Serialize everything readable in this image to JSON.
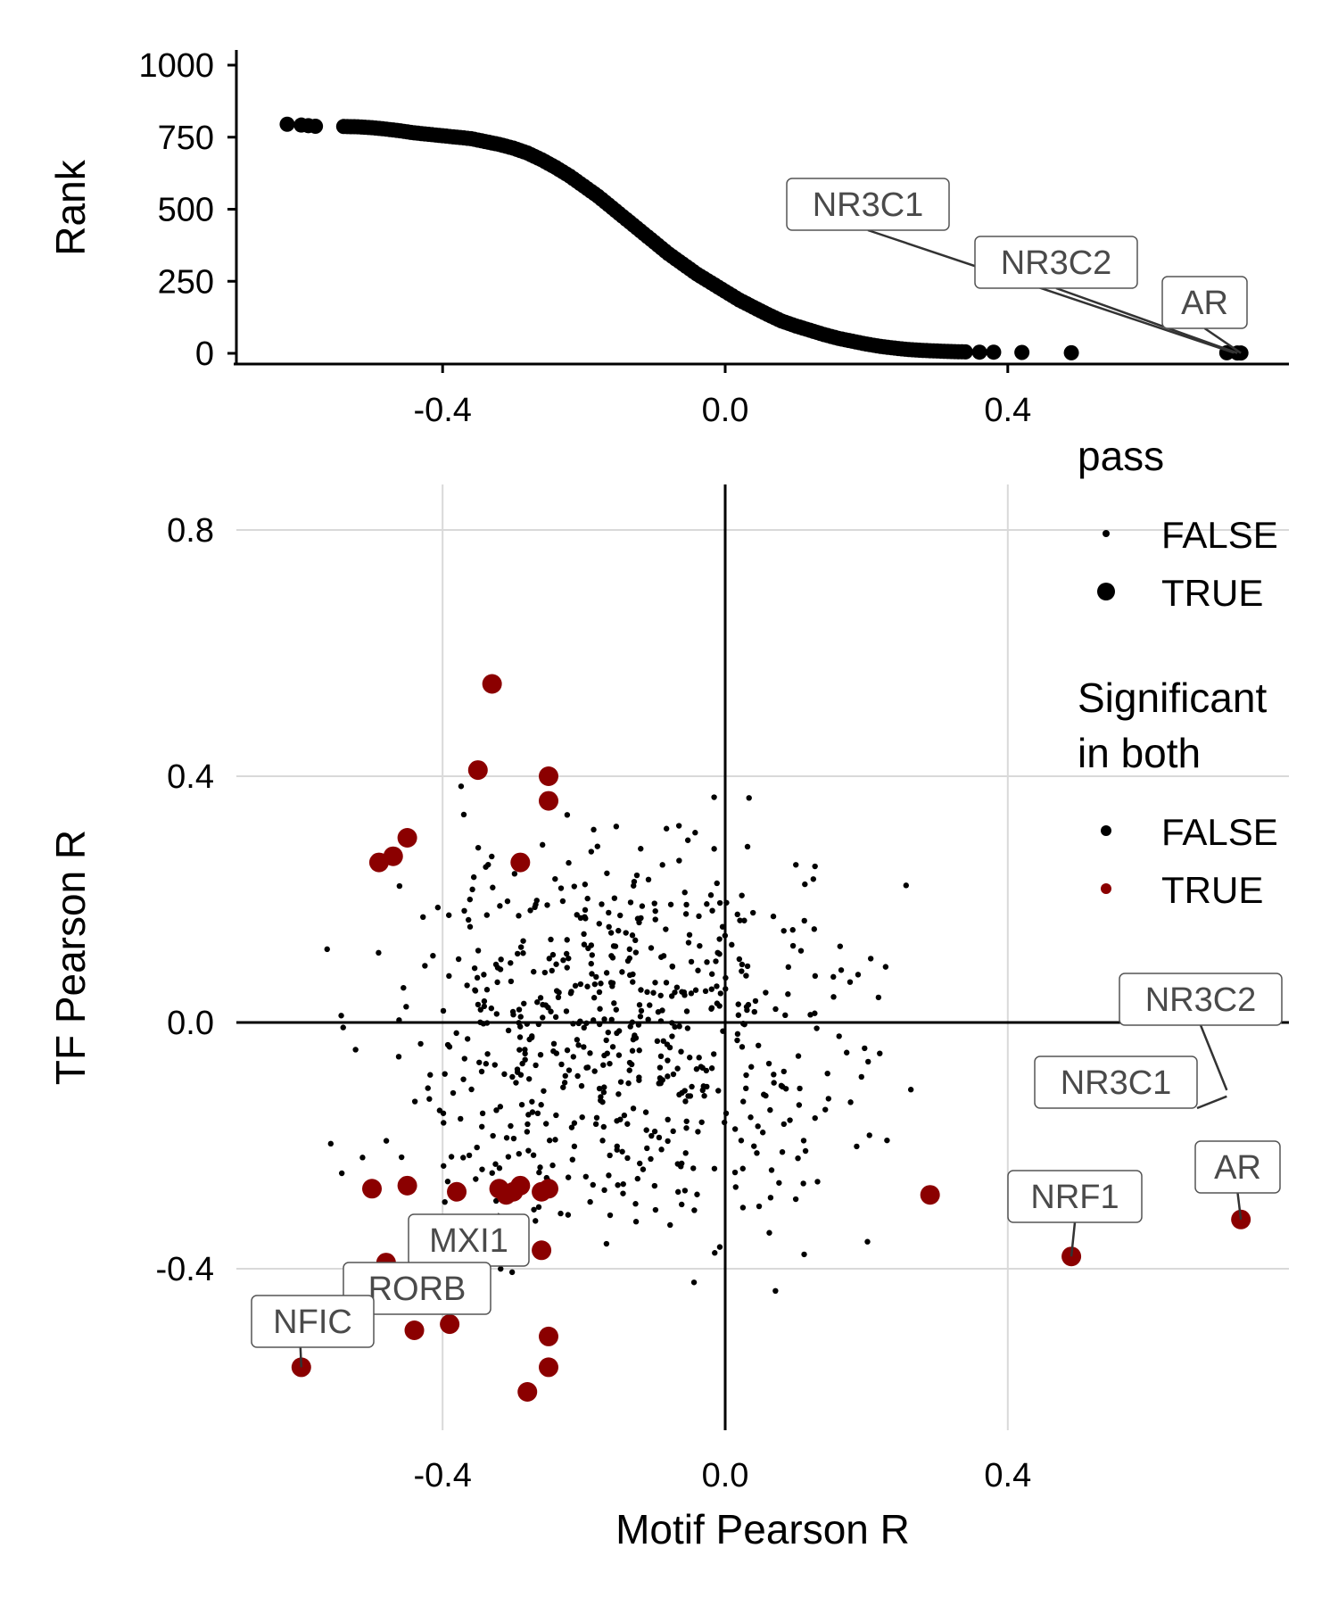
{
  "chart_data": [
    {
      "type": "scatter",
      "panel": "top",
      "ylabel": "Rank",
      "xlabel": "",
      "xlim": [
        -0.69,
        0.8
      ],
      "ylim": [
        -40,
        1050
      ],
      "xticks": [
        "-0.4",
        "0.0",
        "0.4"
      ],
      "xtick_values": [
        -0.4,
        0.0,
        0.4
      ],
      "yticks": [
        "0",
        "250",
        "500",
        "750",
        "1000"
      ],
      "ytick_values": [
        0,
        250,
        500,
        750,
        1000
      ],
      "grid": false,
      "point_color": "#000000",
      "points": [
        [
          -0.62,
          795
        ],
        [
          -0.6,
          792
        ],
        [
          -0.59,
          790
        ],
        [
          -0.58,
          788
        ],
        [
          -0.54,
          787
        ],
        [
          -0.52,
          786
        ],
        [
          -0.5,
          783
        ],
        [
          -0.48,
          778
        ],
        [
          -0.46,
          772
        ],
        [
          -0.44,
          765
        ],
        [
          -0.42,
          760
        ],
        [
          -0.4,
          755
        ],
        [
          -0.38,
          750
        ],
        [
          -0.36,
          745
        ],
        [
          -0.34,
          735
        ],
        [
          -0.32,
          725
        ],
        [
          -0.3,
          712
        ],
        [
          -0.28,
          695
        ],
        [
          -0.26,
          672
        ],
        [
          -0.24,
          645
        ],
        [
          -0.22,
          615
        ],
        [
          -0.2,
          580
        ],
        [
          -0.18,
          545
        ],
        [
          -0.16,
          505
        ],
        [
          -0.14,
          465
        ],
        [
          -0.12,
          425
        ],
        [
          -0.1,
          385
        ],
        [
          -0.08,
          345
        ],
        [
          -0.06,
          310
        ],
        [
          -0.04,
          275
        ],
        [
          -0.02,
          245
        ],
        [
          0.0,
          215
        ],
        [
          0.02,
          185
        ],
        [
          0.04,
          160
        ],
        [
          0.06,
          135
        ],
        [
          0.08,
          112
        ],
        [
          0.1,
          95
        ],
        [
          0.12,
          80
        ],
        [
          0.14,
          65
        ],
        [
          0.16,
          52
        ],
        [
          0.18,
          42
        ],
        [
          0.2,
          32
        ],
        [
          0.22,
          24
        ],
        [
          0.24,
          18
        ],
        [
          0.26,
          13
        ],
        [
          0.28,
          10
        ],
        [
          0.3,
          8
        ],
        [
          0.32,
          6
        ],
        [
          0.34,
          5
        ],
        [
          0.36,
          4
        ],
        [
          0.38,
          4
        ],
        [
          0.42,
          3
        ],
        [
          0.49,
          2
        ],
        [
          0.71,
          2
        ],
        [
          0.725,
          1
        ],
        [
          0.73,
          1
        ]
      ],
      "labels": [
        {
          "text": "NR3C1",
          "x": 0.72,
          "y": 2
        },
        {
          "text": "NR3C2",
          "x": 0.725,
          "y": 1
        },
        {
          "text": "AR",
          "x": 0.73,
          "y": 1
        }
      ]
    },
    {
      "type": "scatter",
      "panel": "bottom",
      "xlabel": "Motif Pearson R",
      "ylabel": "TF Pearson R",
      "xlim": [
        -0.69,
        0.8
      ],
      "ylim": [
        -0.61,
        0.88
      ],
      "xticks": [
        "-0.4",
        "0.0",
        "0.4"
      ],
      "xtick_values": [
        -0.4,
        0.0,
        0.4
      ],
      "yticks": [
        "-0.4",
        "0.0",
        "0.4",
        "0.8"
      ],
      "ytick_values": [
        -0.4,
        0.0,
        0.4,
        0.8
      ],
      "grid": true,
      "reference_lines": {
        "x": 0.0,
        "y": 0.0
      },
      "significant_points": [
        [
          -0.33,
          0.55
        ],
        [
          -0.35,
          0.41
        ],
        [
          -0.25,
          0.4
        ],
        [
          -0.25,
          0.36
        ],
        [
          -0.45,
          0.3
        ],
        [
          -0.47,
          0.27
        ],
        [
          -0.49,
          0.26
        ],
        [
          -0.29,
          0.26
        ],
        [
          -0.5,
          -0.27
        ],
        [
          -0.45,
          -0.265
        ],
        [
          -0.38,
          -0.275
        ],
        [
          -0.32,
          -0.27
        ],
        [
          -0.3,
          -0.275
        ],
        [
          -0.29,
          -0.265
        ],
        [
          -0.31,
          -0.28
        ],
        [
          -0.26,
          -0.275
        ],
        [
          -0.25,
          -0.27
        ],
        [
          -0.26,
          -0.37
        ],
        [
          -0.48,
          -0.39
        ],
        [
          -0.44,
          -0.5
        ],
        [
          -0.39,
          -0.49
        ],
        [
          -0.25,
          -0.51
        ],
        [
          -0.25,
          -0.56
        ],
        [
          -0.28,
          -0.6
        ],
        [
          -0.6,
          -0.56
        ],
        [
          0.29,
          -0.28
        ],
        [
          0.49,
          -0.38
        ],
        [
          0.73,
          -0.32
        ]
      ],
      "significant_color": "#8b0000",
      "nonsig_color": "#000000",
      "labels": [
        {
          "text": "NR3C2",
          "x": 0.71,
          "y": -0.11
        },
        {
          "text": "NR3C1",
          "x": 0.71,
          "y": -0.12
        },
        {
          "text": "AR",
          "x": 0.73,
          "y": -0.32
        },
        {
          "text": "NRF1",
          "x": 0.49,
          "y": -0.38
        },
        {
          "text": "MXI1",
          "x": -0.32,
          "y": -0.31
        },
        {
          "text": "RORB",
          "x": -0.48,
          "y": -0.39
        },
        {
          "text": "NFIC",
          "x": -0.6,
          "y": -0.56
        }
      ],
      "legend": {
        "placement": "right",
        "groups": [
          {
            "title": "pass",
            "entries": [
              "FALSE",
              "TRUE"
            ]
          },
          {
            "title_lines": [
              "Significant",
              "in both"
            ],
            "entries": [
              "FALSE",
              "TRUE"
            ]
          }
        ]
      }
    }
  ]
}
